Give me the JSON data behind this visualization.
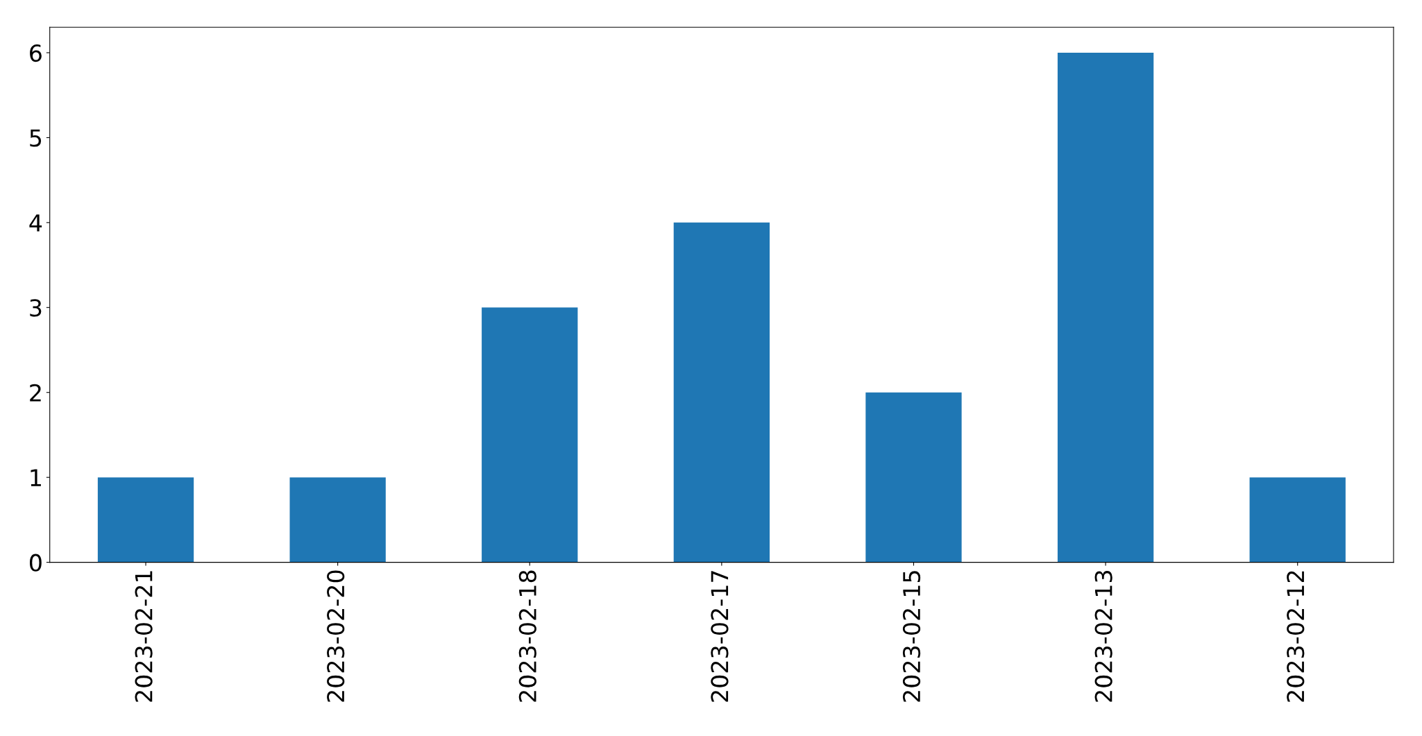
{
  "chart_data": {
    "type": "bar",
    "categories": [
      "2023-02-21",
      "2023-02-20",
      "2023-02-18",
      "2023-02-17",
      "2023-02-15",
      "2023-02-13",
      "2023-02-12"
    ],
    "values": [
      1,
      1,
      3,
      4,
      2,
      6,
      1
    ],
    "color": "#1f77b4",
    "ylim": [
      0,
      6.3
    ],
    "yticks": [
      0,
      1,
      2,
      3,
      4,
      5,
      6
    ],
    "grid": false,
    "legend": false
  }
}
